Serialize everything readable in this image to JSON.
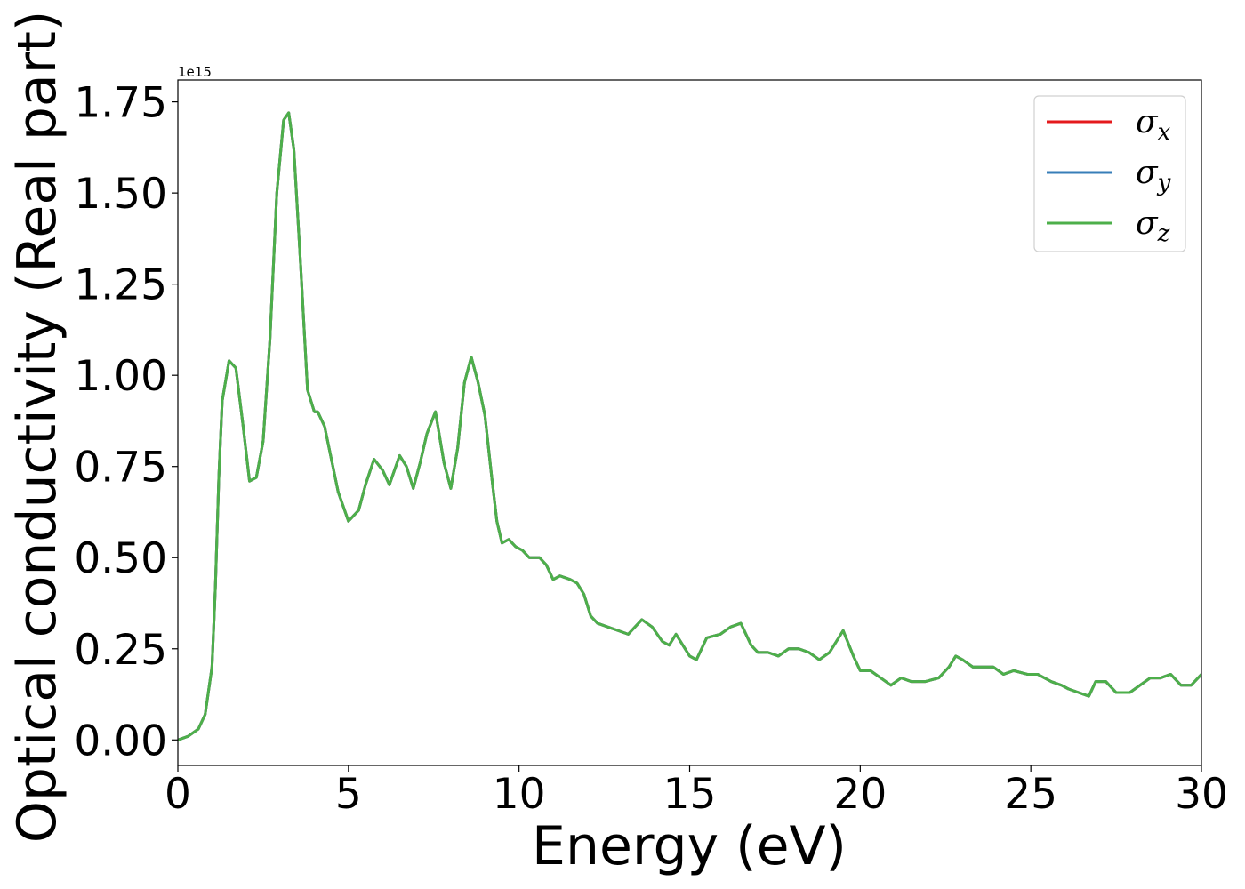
{
  "chart_data": {
    "type": "line",
    "xlabel": "Energy (eV)",
    "ylabel": "Optical conductivity (Real part)",
    "y_offset_label": "1e15",
    "xlim": [
      0,
      30
    ],
    "ylim": [
      -0.07,
      1.81
    ],
    "xticks": [
      0,
      5,
      10,
      15,
      20,
      25,
      30
    ],
    "xtick_labels": [
      "0",
      "5",
      "10",
      "15",
      "20",
      "25",
      "30"
    ],
    "yticks": [
      0.0,
      0.25,
      0.5,
      0.75,
      1.0,
      1.25,
      1.5,
      1.75
    ],
    "ytick_labels": [
      "0.00",
      "0.25",
      "0.50",
      "0.75",
      "1.00",
      "1.25",
      "1.50",
      "1.75"
    ],
    "grid": false,
    "legend_position": "top-right",
    "series": [
      {
        "name": "σx",
        "symbol": "σ",
        "subscript": "x",
        "color": "#e41a1c"
      },
      {
        "name": "σy",
        "symbol": "σ",
        "subscript": "y",
        "color": "#377eb8"
      },
      {
        "name": "σz",
        "symbol": "σ",
        "subscript": "z",
        "color": "#4daf4a"
      }
    ],
    "x": [
      0,
      0.3,
      0.6,
      0.8,
      1.0,
      1.1,
      1.2,
      1.3,
      1.5,
      1.7,
      1.9,
      2.1,
      2.3,
      2.5,
      2.7,
      2.9,
      3.1,
      3.25,
      3.4,
      3.6,
      3.8,
      4.0,
      4.1,
      4.3,
      4.5,
      4.7,
      5.0,
      5.3,
      5.5,
      5.75,
      6.0,
      6.2,
      6.5,
      6.7,
      6.9,
      7.1,
      7.3,
      7.55,
      7.8,
      8.0,
      8.2,
      8.4,
      8.6,
      8.8,
      9.0,
      9.2,
      9.35,
      9.5,
      9.7,
      9.9,
      10.1,
      10.3,
      10.6,
      10.8,
      11.0,
      11.2,
      11.5,
      11.7,
      11.9,
      12.1,
      12.3,
      12.6,
      12.9,
      13.2,
      13.6,
      13.9,
      14.2,
      14.4,
      14.6,
      14.8,
      15.0,
      15.2,
      15.5,
      15.9,
      16.2,
      16.5,
      16.8,
      17.0,
      17.3,
      17.6,
      17.9,
      18.2,
      18.5,
      18.8,
      19.1,
      19.5,
      19.8,
      20.0,
      20.3,
      20.6,
      20.9,
      21.2,
      21.5,
      21.9,
      22.3,
      22.6,
      22.8,
      23.0,
      23.3,
      23.6,
      23.9,
      24.2,
      24.5,
      24.9,
      25.2,
      25.6,
      25.9,
      26.1,
      26.4,
      26.7,
      26.9,
      27.2,
      27.5,
      27.9,
      28.2,
      28.5,
      28.8,
      29.1,
      29.4,
      29.7,
      30.0
    ],
    "y": [
      0.0,
      0.01,
      0.03,
      0.07,
      0.2,
      0.42,
      0.72,
      0.93,
      1.04,
      1.02,
      0.87,
      0.71,
      0.72,
      0.82,
      1.1,
      1.5,
      1.7,
      1.72,
      1.62,
      1.3,
      0.96,
      0.9,
      0.9,
      0.86,
      0.77,
      0.68,
      0.6,
      0.63,
      0.7,
      0.77,
      0.74,
      0.7,
      0.78,
      0.75,
      0.69,
      0.76,
      0.84,
      0.9,
      0.76,
      0.69,
      0.8,
      0.98,
      1.05,
      0.98,
      0.89,
      0.72,
      0.6,
      0.54,
      0.55,
      0.53,
      0.52,
      0.5,
      0.5,
      0.48,
      0.44,
      0.45,
      0.44,
      0.43,
      0.4,
      0.34,
      0.32,
      0.31,
      0.3,
      0.29,
      0.33,
      0.31,
      0.27,
      0.26,
      0.29,
      0.26,
      0.23,
      0.22,
      0.28,
      0.29,
      0.31,
      0.32,
      0.26,
      0.24,
      0.24,
      0.23,
      0.25,
      0.25,
      0.24,
      0.22,
      0.24,
      0.3,
      0.23,
      0.19,
      0.19,
      0.17,
      0.15,
      0.17,
      0.16,
      0.16,
      0.17,
      0.2,
      0.23,
      0.22,
      0.2,
      0.2,
      0.2,
      0.18,
      0.19,
      0.18,
      0.18,
      0.16,
      0.15,
      0.14,
      0.13,
      0.12,
      0.16,
      0.16,
      0.13,
      0.13,
      0.15,
      0.17,
      0.17,
      0.18,
      0.15,
      0.15,
      0.18
    ]
  }
}
